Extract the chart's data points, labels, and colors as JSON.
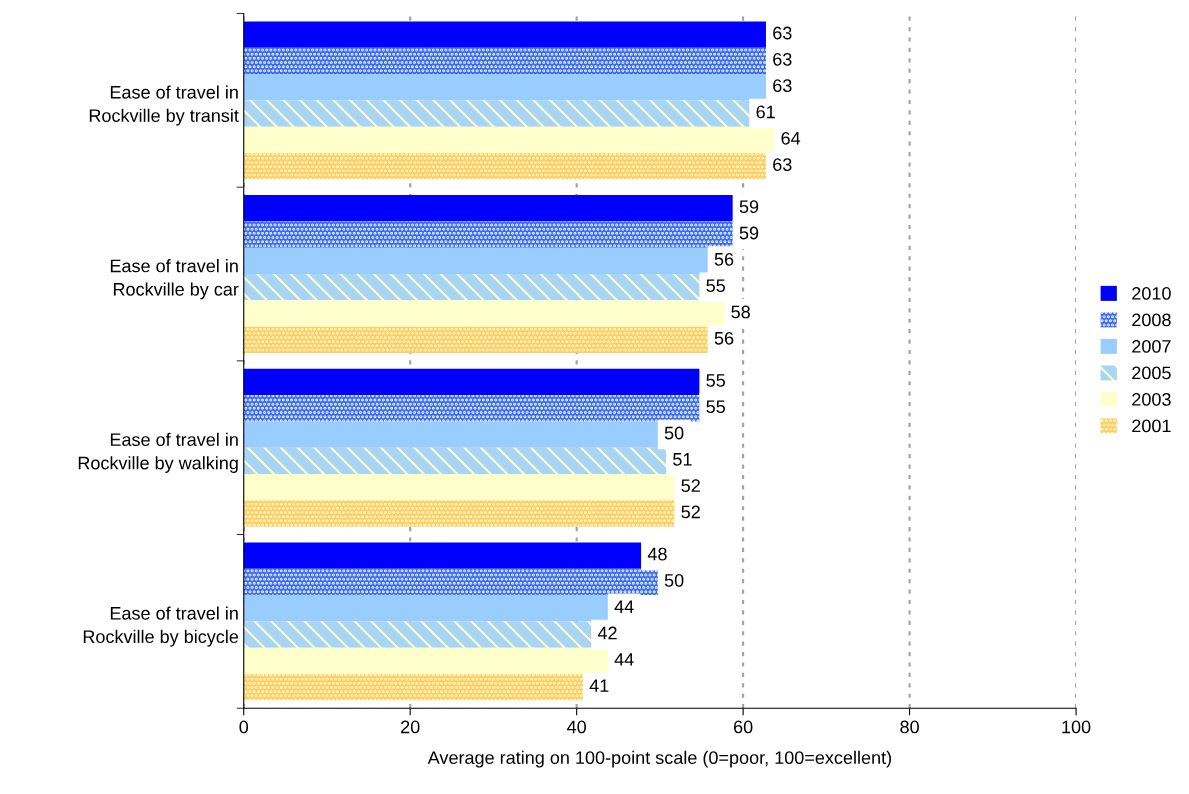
{
  "chart_data": {
    "type": "bar",
    "orientation": "horizontal",
    "xlabel": "Average rating on 100-point scale (0=poor, 100=excellent)",
    "categories": [
      "Ease of travel in\nRockville by transit",
      "Ease of travel in\nRockville by car",
      "Ease of travel in\nRockville by walking",
      "Ease of travel in\nRockville by bicycle"
    ],
    "series": [
      {
        "name": "2010",
        "color": "#0000ff",
        "values": [
          63,
          59,
          55,
          48
        ]
      },
      {
        "name": "2008",
        "color": "#3a6cf0",
        "values": [
          63,
          59,
          55,
          50
        ]
      },
      {
        "name": "2007",
        "color": "#99ccff",
        "values": [
          63,
          56,
          50,
          44
        ]
      },
      {
        "name": "2005",
        "color": "#a8d4f5",
        "values": [
          61,
          55,
          51,
          42
        ]
      },
      {
        "name": "2003",
        "color": "#ffffcc",
        "values": [
          64,
          58,
          52,
          44
        ]
      },
      {
        "name": "2001",
        "color": "#ffcc66",
        "values": [
          63,
          56,
          52,
          41
        ]
      }
    ],
    "xlim": [
      0,
      100
    ],
    "xticks": [
      0,
      20,
      40,
      60,
      80,
      100
    ],
    "grid": "x",
    "legend": "right",
    "data_labels": true
  }
}
